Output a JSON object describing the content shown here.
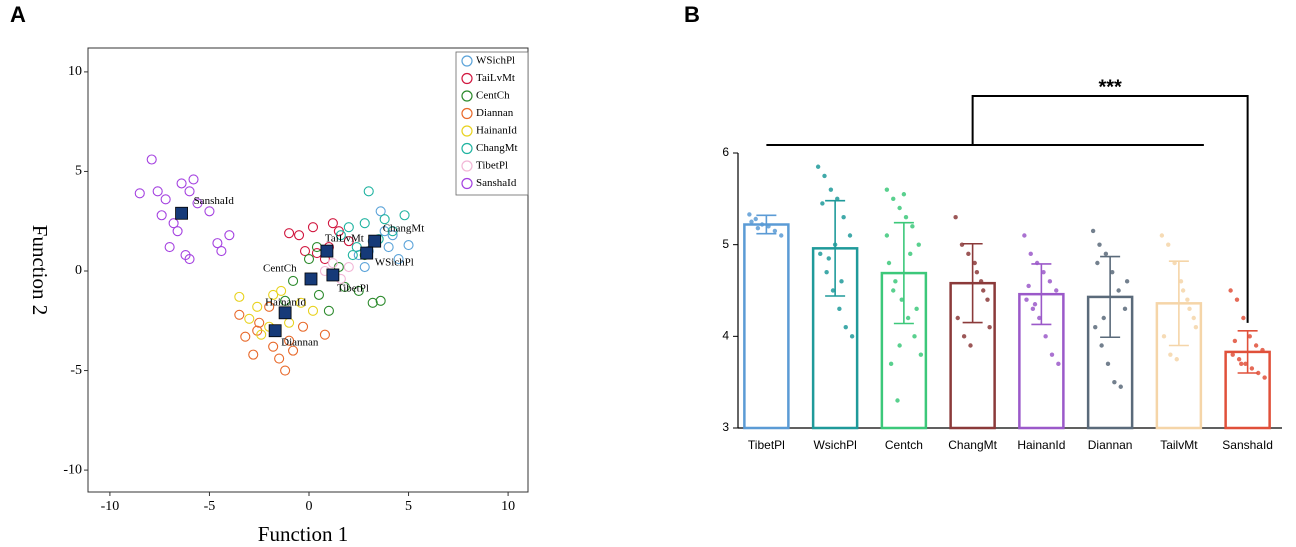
{
  "chart_data": [
    {
      "type": "scatter",
      "panel": "A",
      "xlabel": "Function 1",
      "ylabel": "Function 2",
      "xlim": [
        -11.1,
        11
      ],
      "ylim": [
        -11.1,
        11.2
      ],
      "xticks": [
        -10,
        -5,
        0,
        5,
        10
      ],
      "yticks": [
        -10,
        -5,
        0,
        5,
        10
      ],
      "legend": "upper right",
      "series": [
        {
          "name": "WSichPl",
          "color": "#5ba3d9",
          "x": [
            2.5,
            3.2,
            4.0,
            4.5,
            3.8,
            2.8,
            4.2,
            3.0,
            5.0,
            3.6
          ],
          "y": [
            0.8,
            1.5,
            1.2,
            0.6,
            2.0,
            0.2,
            1.8,
            1.0,
            1.3,
            3.0
          ]
        },
        {
          "name": "TaiLvMt",
          "color": "#d1173f",
          "x": [
            -0.5,
            0.2,
            1.0,
            1.5,
            0.8,
            -1.0,
            2.0,
            0.4,
            1.2,
            -0.2
          ],
          "y": [
            1.8,
            2.2,
            1.2,
            2.0,
            0.6,
            1.9,
            1.5,
            0.9,
            2.4,
            1.0
          ]
        },
        {
          "name": "CentCh",
          "color": "#2c8a2c",
          "x": [
            -0.8,
            0.5,
            1.5,
            2.5,
            3.2,
            0.0,
            1.8,
            -1.2,
            2.8,
            1.0,
            3.6,
            0.4
          ],
          "y": [
            -0.5,
            -1.2,
            0.2,
            -1.0,
            -1.6,
            0.6,
            -0.8,
            -1.5,
            0.8,
            -2.0,
            -1.5,
            1.2
          ]
        },
        {
          "name": "Diannan",
          "color": "#e8692a",
          "x": [
            -3.2,
            -2.5,
            -1.8,
            -1.0,
            -0.3,
            -2.8,
            -1.5,
            -3.5,
            -0.8,
            -2.0,
            0.8,
            -1.2,
            -2.6
          ],
          "y": [
            -3.3,
            -2.6,
            -3.8,
            -3.5,
            -2.8,
            -4.2,
            -4.4,
            -2.2,
            -4.0,
            -1.8,
            -3.2,
            -5.0,
            -3.0
          ]
        },
        {
          "name": "HainanId",
          "color": "#e8d21e",
          "x": [
            -3.5,
            -2.6,
            -1.8,
            -1.0,
            -0.4,
            -3.0,
            -2.0,
            -1.4,
            0.2,
            -2.4
          ],
          "y": [
            -1.3,
            -1.8,
            -1.2,
            -2.6,
            -1.6,
            -2.4,
            -2.8,
            -1.0,
            -2.0,
            -3.2
          ]
        },
        {
          "name": "ChangMt",
          "color": "#1fb3a0",
          "x": [
            2.0,
            2.8,
            3.5,
            4.2,
            2.4,
            3.8,
            1.6,
            3.0,
            4.8,
            2.2
          ],
          "y": [
            2.2,
            2.4,
            1.6,
            2.0,
            1.2,
            2.6,
            1.8,
            4.0,
            2.8,
            0.8
          ]
        },
        {
          "name": "TibetPl",
          "color": "#f2b6d6",
          "x": [
            0.8,
            1.6,
            1.2,
            2.0
          ],
          "y": [
            0.0,
            -0.4,
            0.4,
            0.2
          ]
        },
        {
          "name": "SanshaId",
          "color": "#a441e0",
          "x": [
            -7.9,
            -7.6,
            -7.2,
            -6.8,
            -6.4,
            -6.0,
            -5.6,
            -5.0,
            -4.6,
            -4.0,
            -7.0,
            -6.2,
            -7.4,
            -5.8,
            -6.6,
            -4.4,
            -6.0,
            -8.5
          ],
          "y": [
            5.6,
            4.0,
            3.6,
            2.4,
            4.4,
            4.0,
            3.4,
            3.0,
            1.4,
            1.8,
            1.2,
            0.8,
            2.8,
            4.6,
            2.0,
            1.0,
            0.6,
            3.9
          ]
        }
      ],
      "centroids": {
        "color": "#163a78",
        "names": [
          "SanshaId",
          "ChangMt",
          "TaiLvMt",
          "WSichPl",
          "CentCh",
          "TibetPl",
          "HainanId",
          "Diannan"
        ],
        "x": [
          -6.4,
          3.3,
          0.9,
          2.9,
          0.1,
          1.2,
          -1.2,
          -1.7
        ],
        "y": [
          2.9,
          1.5,
          1.0,
          0.9,
          -0.4,
          -0.2,
          -2.1,
          -3.0
        ]
      }
    },
    {
      "type": "bar",
      "panel": "B",
      "categories": [
        "TibetPl",
        "WsichPl",
        "Centch",
        "ChangMt",
        "HainanId",
        "Diannan",
        "TailvMt",
        "SanshaId"
      ],
      "values": [
        5.22,
        4.96,
        4.69,
        4.58,
        4.46,
        4.43,
        4.36,
        3.83
      ],
      "errors": [
        0.1,
        0.52,
        0.55,
        0.43,
        0.33,
        0.44,
        0.46,
        0.23
      ],
      "colors": [
        "#5b9bd5",
        "#1f9a9a",
        "#3cc87a",
        "#8b3a3a",
        "#9b59c9",
        "#5a6a7a",
        "#f5d5a8",
        "#e0503a"
      ],
      "points": [
        [
          5.33,
          5.28,
          5.22,
          5.2,
          5.15,
          5.1,
          5.25,
          5.18
        ],
        [
          5.85,
          5.75,
          5.6,
          5.5,
          5.3,
          5.1,
          4.9,
          4.7,
          4.5,
          4.3,
          4.1,
          4.0,
          5.45,
          4.85,
          5.0,
          4.6
        ],
        [
          5.6,
          5.5,
          5.4,
          5.3,
          5.2,
          5.0,
          4.8,
          4.6,
          4.4,
          4.2,
          4.0,
          3.8,
          3.7,
          3.3,
          5.55,
          4.9,
          4.3,
          5.1,
          4.5,
          3.9
        ],
        [
          5.3,
          5.0,
          4.9,
          4.8,
          4.6,
          4.4,
          4.2,
          4.0,
          3.9,
          4.7,
          4.5,
          4.1
        ],
        [
          5.1,
          4.9,
          4.8,
          4.7,
          4.6,
          4.5,
          4.4,
          4.3,
          4.2,
          4.0,
          3.8,
          3.7,
          4.55,
          4.35
        ],
        [
          5.15,
          5.0,
          4.9,
          4.7,
          4.5,
          4.3,
          4.1,
          3.9,
          3.7,
          3.5,
          3.45,
          4.6,
          4.8,
          4.2
        ],
        [
          5.1,
          5.0,
          4.8,
          4.6,
          4.4,
          4.2,
          4.0,
          3.8,
          3.75,
          4.5,
          4.3,
          4.1
        ],
        [
          4.5,
          4.4,
          4.2,
          4.0,
          3.9,
          3.85,
          3.8,
          3.75,
          3.7,
          3.65,
          3.6,
          3.55,
          3.95,
          3.7
        ]
      ],
      "ylim": [
        3,
        6
      ],
      "yticks": [
        3,
        4,
        5,
        6
      ],
      "annotation": "***"
    }
  ]
}
